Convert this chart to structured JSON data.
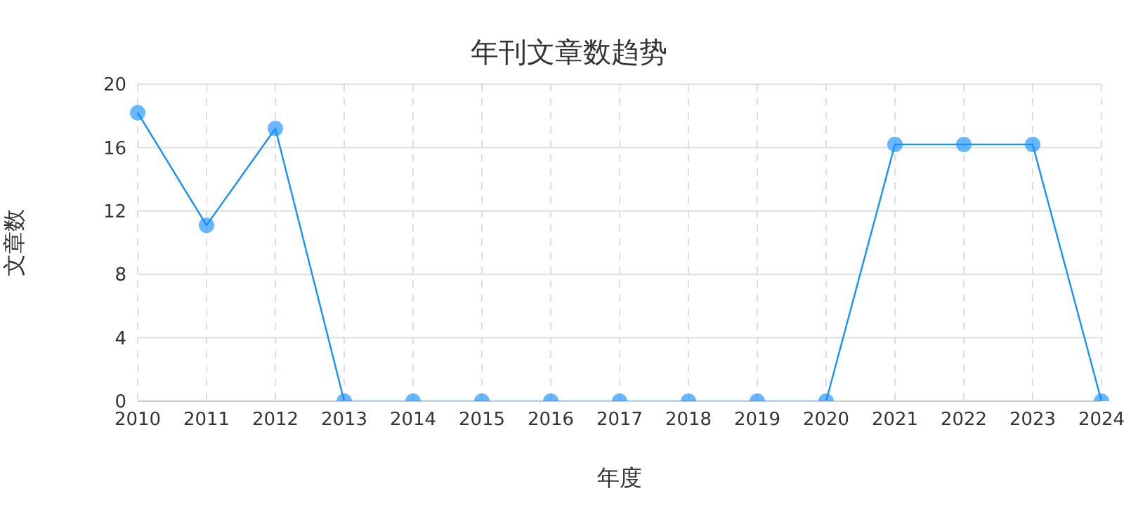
{
  "chart_data": {
    "type": "line",
    "title": "年刊文章数趋势",
    "xlabel": "年度",
    "ylabel": "文章数",
    "categories": [
      "2010",
      "2011",
      "2012",
      "2013",
      "2014",
      "2015",
      "2016",
      "2017",
      "2018",
      "2019",
      "2020",
      "2021",
      "2022",
      "2023",
      "2024"
    ],
    "series": [
      {
        "color": "#1890ff",
        "values": [
          18.2,
          11.1,
          17.2,
          0,
          0,
          0,
          0,
          0,
          0,
          0,
          0,
          16.2,
          16.2,
          16.2,
          0
        ]
      }
    ],
    "ylim": [
      0,
      20
    ],
    "yticks": [
      0,
      4,
      8,
      12,
      16,
      20
    ],
    "grid": true,
    "marker": "circle",
    "line_style": "solid"
  }
}
